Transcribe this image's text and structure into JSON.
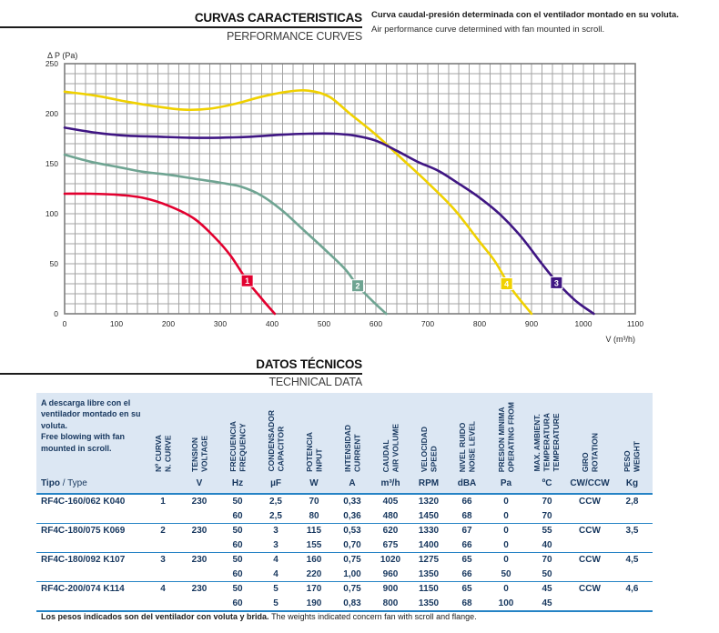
{
  "header": {
    "title_es": "CURVAS CARACTERISTICAS",
    "title_en": "PERFORMANCE CURVES",
    "desc_es": "Curva caudal-presión determinada con el ventilador montado en su voluta.",
    "desc_en": "Air performance curve determined with fan mounted in scroll."
  },
  "section2": {
    "title_es": "DATOS TÉCNICOS",
    "title_en": "TECHNICAL DATA"
  },
  "footer": {
    "note_es": "Los pesos indicados son del ventilador con voluta y brida.",
    "note_en": "The weights indicated concern fan with scroll and flange."
  },
  "chart_data": {
    "type": "line",
    "title": "",
    "xlabel": "V (m³/h)",
    "ylabel": "Δ P (Pa)",
    "xlim": [
      0,
      1100
    ],
    "ylim": [
      0,
      250
    ],
    "x_ticks": [
      0,
      100,
      200,
      300,
      400,
      500,
      600,
      700,
      800,
      900,
      1000,
      1100
    ],
    "y_ticks": [
      0,
      50,
      100,
      150,
      200,
      250
    ],
    "grid": {
      "on": true,
      "minor_x_step": 20,
      "minor_y_step": 10,
      "color": "#a3a3a3"
    },
    "legend_position": "markers-on-curves",
    "series": [
      {
        "name": "1",
        "color": "#e2002f",
        "marker": [
          352,
          33
        ],
        "points": [
          [
            0,
            120
          ],
          [
            50,
            120
          ],
          [
            100,
            119
          ],
          [
            150,
            116
          ],
          [
            200,
            108
          ],
          [
            250,
            95
          ],
          [
            290,
            76
          ],
          [
            320,
            58
          ],
          [
            352,
            33
          ],
          [
            380,
            15
          ],
          [
            405,
            0
          ]
        ]
      },
      {
        "name": "2",
        "color": "#6fa492",
        "marker": [
          565,
          28
        ],
        "points": [
          [
            0,
            159
          ],
          [
            50,
            152
          ],
          [
            100,
            147
          ],
          [
            150,
            142
          ],
          [
            200,
            139
          ],
          [
            250,
            135
          ],
          [
            300,
            131
          ],
          [
            340,
            127
          ],
          [
            380,
            118
          ],
          [
            420,
            103
          ],
          [
            460,
            84
          ],
          [
            500,
            65
          ],
          [
            540,
            45
          ],
          [
            565,
            28
          ],
          [
            595,
            12
          ],
          [
            620,
            0
          ]
        ]
      },
      {
        "name": "4",
        "color": "#f0d100",
        "marker": [
          852,
          30
        ],
        "points": [
          [
            0,
            222
          ],
          [
            60,
            218
          ],
          [
            120,
            212
          ],
          [
            180,
            207
          ],
          [
            230,
            204
          ],
          [
            280,
            205
          ],
          [
            330,
            210
          ],
          [
            380,
            217
          ],
          [
            430,
            222
          ],
          [
            470,
            223
          ],
          [
            510,
            217
          ],
          [
            550,
            200
          ],
          [
            600,
            179
          ],
          [
            650,
            155
          ],
          [
            700,
            131
          ],
          [
            750,
            105
          ],
          [
            800,
            72
          ],
          [
            830,
            52
          ],
          [
            860,
            26
          ],
          [
            900,
            0
          ]
        ]
      },
      {
        "name": "3",
        "color": "#3f1683",
        "marker": [
          948,
          31
        ],
        "points": [
          [
            0,
            186
          ],
          [
            60,
            181
          ],
          [
            120,
            178
          ],
          [
            180,
            177
          ],
          [
            240,
            176
          ],
          [
            300,
            176
          ],
          [
            360,
            177
          ],
          [
            420,
            179
          ],
          [
            470,
            180
          ],
          [
            520,
            180
          ],
          [
            560,
            178
          ],
          [
            600,
            173
          ],
          [
            640,
            163
          ],
          [
            680,
            152
          ],
          [
            720,
            143
          ],
          [
            760,
            130
          ],
          [
            800,
            116
          ],
          [
            840,
            99
          ],
          [
            880,
            77
          ],
          [
            920,
            50
          ],
          [
            950,
            31
          ],
          [
            985,
            13
          ],
          [
            1020,
            0
          ]
        ]
      }
    ]
  },
  "table": {
    "note_es": "A descarga libre con el ventilador montado en su voluta.",
    "note_en": "Free blowing with fan mounted in scroll.",
    "type_header": {
      "tipo": "Tipo",
      "sep": " / ",
      "type": "Type"
    },
    "columns": [
      {
        "lines": [
          "Nº CURVA",
          "N. CURVE"
        ],
        "unit": ""
      },
      {
        "lines": [
          "TENSION",
          "VOLTAGE"
        ],
        "unit": "V"
      },
      {
        "lines": [
          "FRECUENCIA",
          "FREQUENCY"
        ],
        "unit": "Hz"
      },
      {
        "lines": [
          "CONDENSADOR",
          "CAPACITOR"
        ],
        "unit": "µF"
      },
      {
        "lines": [
          "POTENCIA",
          "INPUT"
        ],
        "unit": "W"
      },
      {
        "lines": [
          "INTENSIDAD",
          "CURRENT"
        ],
        "unit": "A"
      },
      {
        "lines": [
          "CAUDAL",
          "AIR VOLUME"
        ],
        "unit": "m³/h"
      },
      {
        "lines": [
          "VELOCIDAD",
          "SPEED"
        ],
        "unit": "RPM"
      },
      {
        "lines": [
          "NIVEL RUIDO",
          "NOISE LEVEL"
        ],
        "unit": "dBA"
      },
      {
        "lines": [
          "PRESION MINIMA",
          "OPERATING FROM"
        ],
        "unit": "Pa"
      },
      {
        "lines": [
          "MAX. AMBIENT.",
          "TEMPERATURA",
          "TEMPERATURE"
        ],
        "unit": "ºC"
      },
      {
        "lines": [
          "GIRO",
          "ROTATION"
        ],
        "unit": "CW/CCW"
      },
      {
        "lines": [
          "PESO",
          "WEIGHT"
        ],
        "unit": "Kg"
      }
    ],
    "rows": [
      {
        "type": "RF4C-160/062 K040",
        "curve": "1",
        "voltage": "230",
        "rotation": "CCW",
        "weight": "2,8",
        "sub": [
          {
            "hz": "50",
            "uf": "2,5",
            "w": "70",
            "a": "0,33",
            "m3h": "405",
            "rpm": "1320",
            "dba": "66",
            "pa": "0",
            "temp": "70"
          },
          {
            "hz": "60",
            "uf": "2,5",
            "w": "80",
            "a": "0,36",
            "m3h": "480",
            "rpm": "1450",
            "dba": "68",
            "pa": "0",
            "temp": "70"
          }
        ]
      },
      {
        "type": "RF4C-180/075 K069",
        "curve": "2",
        "voltage": "230",
        "rotation": "CCW",
        "weight": "3,5",
        "sub": [
          {
            "hz": "50",
            "uf": "3",
            "w": "115",
            "a": "0,53",
            "m3h": "620",
            "rpm": "1330",
            "dba": "67",
            "pa": "0",
            "temp": "55"
          },
          {
            "hz": "60",
            "uf": "3",
            "w": "155",
            "a": "0,70",
            "m3h": "675",
            "rpm": "1400",
            "dba": "66",
            "pa": "0",
            "temp": "40"
          }
        ]
      },
      {
        "type": "RF4C-180/092 K107",
        "curve": "3",
        "voltage": "230",
        "rotation": "CCW",
        "weight": "4,5",
        "sub": [
          {
            "hz": "50",
            "uf": "4",
            "w": "160",
            "a": "0,75",
            "m3h": "1020",
            "rpm": "1275",
            "dba": "65",
            "pa": "0",
            "temp": "70"
          },
          {
            "hz": "60",
            "uf": "4",
            "w": "220",
            "a": "1,00",
            "m3h": "960",
            "rpm": "1350",
            "dba": "66",
            "pa": "50",
            "temp": "50"
          }
        ]
      },
      {
        "type": "RF4C-200/074 K114",
        "curve": "4",
        "voltage": "230",
        "rotation": "CCW",
        "weight": "4,6",
        "sub": [
          {
            "hz": "50",
            "uf": "5",
            "w": "170",
            "a": "0,75",
            "m3h": "900",
            "rpm": "1150",
            "dba": "65",
            "pa": "0",
            "temp": "45"
          },
          {
            "hz": "60",
            "uf": "5",
            "w": "190",
            "a": "0,83",
            "m3h": "800",
            "rpm": "1350",
            "dba": "68",
            "pa": "100",
            "temp": "45"
          }
        ]
      }
    ]
  }
}
